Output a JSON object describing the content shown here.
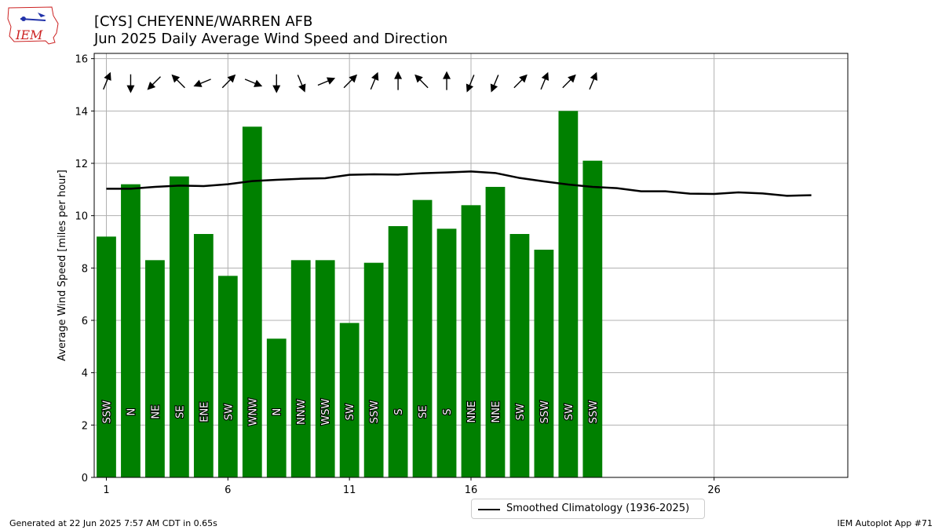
{
  "header": {
    "title_line1": "[CYS] CHEYENNE/WARREN AFB",
    "title_line2": "Jun 2025 Daily Average Wind Speed and Direction"
  },
  "logo": {
    "text": "IEM"
  },
  "footer": {
    "generated": "Generated at 22 Jun 2025 7:57 AM CDT in 0.65s",
    "app": "IEM Autoplot App #71"
  },
  "colors": {
    "bars": "#008000",
    "climatology": "#000000",
    "grid": "#b0b0b0",
    "logo_red": "#cc2222",
    "logo_blue": "#2233aa"
  },
  "chart_data": {
    "type": "bar",
    "title": "[CYS] CHEYENNE/WARREN AFB",
    "subtitle": "Jun 2025 Daily Average Wind Speed and Direction",
    "xlabel": "",
    "ylabel": "Average Wind Speed [miles per hour]",
    "xlim": [
      0.5,
      31.5
    ],
    "ylim": [
      0,
      16.2
    ],
    "xticks": [
      1,
      6,
      11,
      16,
      26
    ],
    "yticks": [
      0,
      2,
      4,
      6,
      8,
      10,
      12,
      14,
      16
    ],
    "grid": true,
    "legend_position": "bottom-center",
    "days": [
      1,
      2,
      3,
      4,
      5,
      6,
      7,
      8,
      9,
      10,
      11,
      12,
      13,
      14,
      15,
      16,
      17,
      18,
      19,
      20,
      21
    ],
    "values": [
      9.2,
      11.2,
      8.3,
      11.5,
      9.3,
      7.7,
      13.4,
      5.3,
      8.3,
      8.3,
      5.9,
      8.2,
      9.6,
      10.6,
      9.5,
      10.4,
      11.1,
      9.3,
      8.7,
      14.0,
      12.1
    ],
    "directions": [
      "SSW",
      "N",
      "NE",
      "SE",
      "ENE",
      "SW",
      "WNW",
      "N",
      "NNW",
      "WSW",
      "SW",
      "SSW",
      "S",
      "SE",
      "S",
      "NNE",
      "NNE",
      "SW",
      "SSW",
      "SW",
      "SSW"
    ],
    "direction_degrees": [
      202.5,
      0,
      45,
      135,
      67.5,
      225,
      292.5,
      0,
      337.5,
      247.5,
      225,
      202.5,
      180,
      135,
      180,
      22.5,
      22.5,
      225,
      202.5,
      225,
      202.5
    ],
    "climatology": {
      "name": "Smoothed Climatology (1936-2025)",
      "x": [
        1,
        2,
        3,
        4,
        5,
        6,
        7,
        8,
        9,
        10,
        11,
        12,
        13,
        14,
        15,
        16,
        17,
        18,
        19,
        20,
        21,
        22,
        23,
        24,
        25,
        26,
        27,
        28,
        29,
        30
      ],
      "y": [
        11.03,
        11.03,
        11.1,
        11.15,
        11.13,
        11.2,
        11.32,
        11.37,
        11.41,
        11.43,
        11.56,
        11.58,
        11.57,
        11.62,
        11.65,
        11.69,
        11.63,
        11.44,
        11.31,
        11.19,
        11.1,
        11.05,
        10.93,
        10.93,
        10.84,
        10.83,
        10.89,
        10.85,
        10.76,
        10.78
      ]
    }
  }
}
